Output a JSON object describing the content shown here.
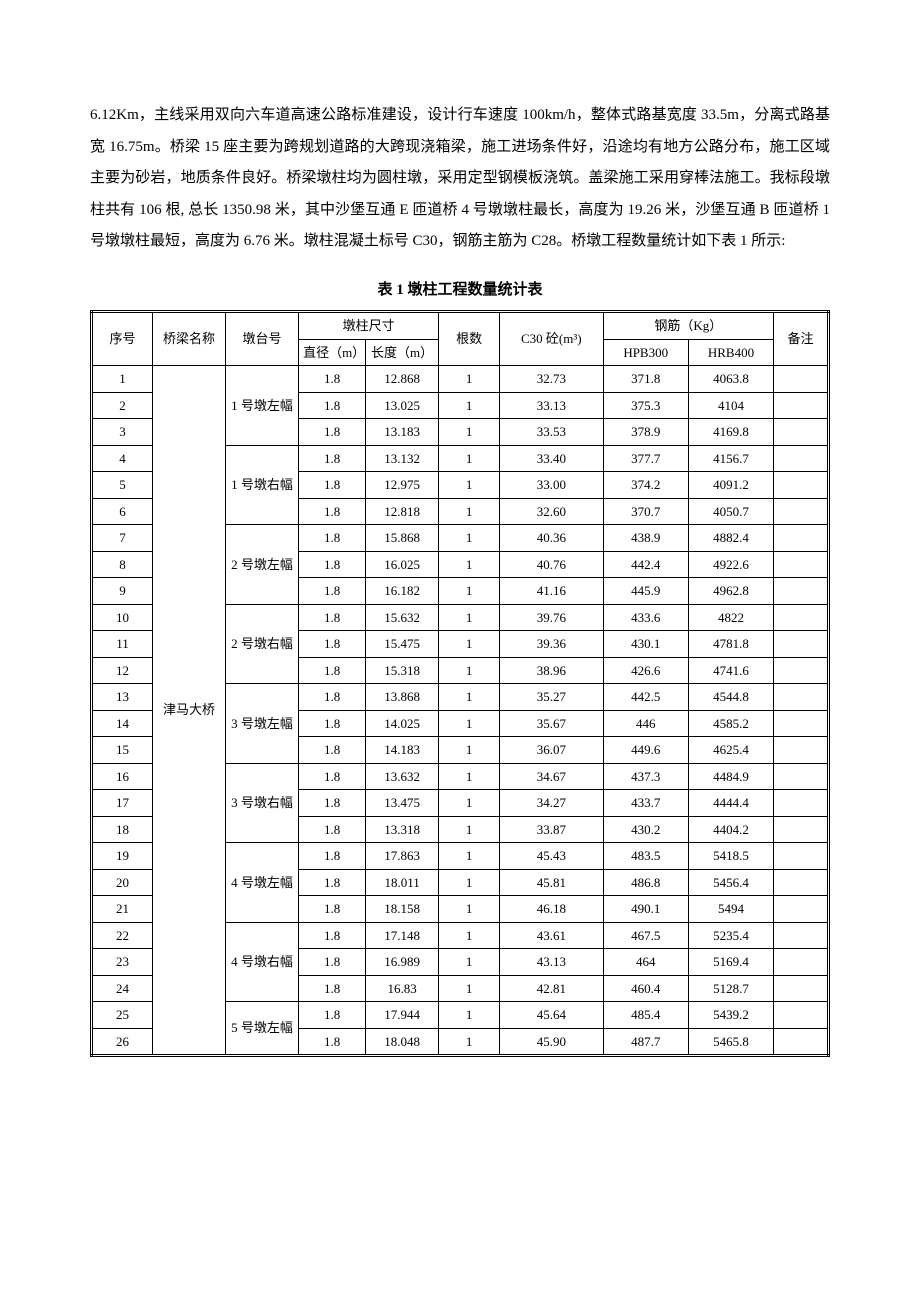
{
  "paragraph": "6.12Km，主线采用双向六车道高速公路标准建设，设计行车速度 100km/h，整体式路基宽度 33.5m，分离式路基宽 16.75m。桥梁 15 座主要为跨规划道路的大跨现浇箱梁，施工进场条件好，沿途均有地方公路分布，施工区域主要为砂岩，地质条件良好。桥梁墩柱均为圆柱墩，采用定型钢模板浇筑。盖梁施工采用穿棒法施工。我标段墩柱共有 106 根, 总长 1350.98 米，其中沙堡互通 E 匝道桥 4 号墩墩柱最长，高度为 19.26 米，沙堡互通 B 匝道桥 1 号墩墩柱最短，高度为 6.76 米。墩柱混凝土标号 C30，钢筋主筋为 C28。桥墩工程数量统计如下表 1 所示:",
  "tableTitle": "表 1  墩柱工程数量统计表",
  "headers": {
    "seq": "序号",
    "bridgeName": "桥梁名称",
    "pierNo": "墩台号",
    "pierSize": "墩柱尺寸",
    "diameter": "直径（m）",
    "length": "长度（m）",
    "count": "根数",
    "c30": "C30 砼(m³)",
    "rebar": "钢筋（Kg）",
    "hpb300": "HPB300",
    "hrb400": "HRB400",
    "note": "备注"
  },
  "bridgeName": "津马大桥",
  "pierGroups": [
    {
      "label": "1 号墩左幅",
      "span": 3
    },
    {
      "label": "1 号墩右幅",
      "span": 3
    },
    {
      "label": "2 号墩左幅",
      "span": 3
    },
    {
      "label": "2 号墩右幅",
      "span": 3
    },
    {
      "label": "3 号墩左幅",
      "span": 3
    },
    {
      "label": "3 号墩右幅",
      "span": 3
    },
    {
      "label": "4 号墩左幅",
      "span": 3
    },
    {
      "label": "4 号墩右幅",
      "span": 3
    },
    {
      "label": "5 号墩左幅",
      "span": 2
    }
  ],
  "rows": [
    {
      "seq": 1,
      "diam": "1.8",
      "len": "12.868",
      "count": "1",
      "c30": "32.73",
      "hpb": "371.8",
      "hrb": "4063.8",
      "note": ""
    },
    {
      "seq": 2,
      "diam": "1.8",
      "len": "13.025",
      "count": "1",
      "c30": "33.13",
      "hpb": "375.3",
      "hrb": "4104",
      "note": ""
    },
    {
      "seq": 3,
      "diam": "1.8",
      "len": "13.183",
      "count": "1",
      "c30": "33.53",
      "hpb": "378.9",
      "hrb": "4169.8",
      "note": ""
    },
    {
      "seq": 4,
      "diam": "1.8",
      "len": "13.132",
      "count": "1",
      "c30": "33.40",
      "hpb": "377.7",
      "hrb": "4156.7",
      "note": ""
    },
    {
      "seq": 5,
      "diam": "1.8",
      "len": "12.975",
      "count": "1",
      "c30": "33.00",
      "hpb": "374.2",
      "hrb": "4091.2",
      "note": ""
    },
    {
      "seq": 6,
      "diam": "1.8",
      "len": "12.818",
      "count": "1",
      "c30": "32.60",
      "hpb": "370.7",
      "hrb": "4050.7",
      "note": ""
    },
    {
      "seq": 7,
      "diam": "1.8",
      "len": "15.868",
      "count": "1",
      "c30": "40.36",
      "hpb": "438.9",
      "hrb": "4882.4",
      "note": ""
    },
    {
      "seq": 8,
      "diam": "1.8",
      "len": "16.025",
      "count": "1",
      "c30": "40.76",
      "hpb": "442.4",
      "hrb": "4922.6",
      "note": ""
    },
    {
      "seq": 9,
      "diam": "1.8",
      "len": "16.182",
      "count": "1",
      "c30": "41.16",
      "hpb": "445.9",
      "hrb": "4962.8",
      "note": ""
    },
    {
      "seq": 10,
      "diam": "1.8",
      "len": "15.632",
      "count": "1",
      "c30": "39.76",
      "hpb": "433.6",
      "hrb": "4822",
      "note": ""
    },
    {
      "seq": 11,
      "diam": "1.8",
      "len": "15.475",
      "count": "1",
      "c30": "39.36",
      "hpb": "430.1",
      "hrb": "4781.8",
      "note": ""
    },
    {
      "seq": 12,
      "diam": "1.8",
      "len": "15.318",
      "count": "1",
      "c30": "38.96",
      "hpb": "426.6",
      "hrb": "4741.6",
      "note": ""
    },
    {
      "seq": 13,
      "diam": "1.8",
      "len": "13.868",
      "count": "1",
      "c30": "35.27",
      "hpb": "442.5",
      "hrb": "4544.8",
      "note": ""
    },
    {
      "seq": 14,
      "diam": "1.8",
      "len": "14.025",
      "count": "1",
      "c30": "35.67",
      "hpb": "446",
      "hrb": "4585.2",
      "note": ""
    },
    {
      "seq": 15,
      "diam": "1.8",
      "len": "14.183",
      "count": "1",
      "c30": "36.07",
      "hpb": "449.6",
      "hrb": "4625.4",
      "note": ""
    },
    {
      "seq": 16,
      "diam": "1.8",
      "len": "13.632",
      "count": "1",
      "c30": "34.67",
      "hpb": "437.3",
      "hrb": "4484.9",
      "note": ""
    },
    {
      "seq": 17,
      "diam": "1.8",
      "len": "13.475",
      "count": "1",
      "c30": "34.27",
      "hpb": "433.7",
      "hrb": "4444.4",
      "note": ""
    },
    {
      "seq": 18,
      "diam": "1.8",
      "len": "13.318",
      "count": "1",
      "c30": "33.87",
      "hpb": "430.2",
      "hrb": "4404.2",
      "note": ""
    },
    {
      "seq": 19,
      "diam": "1.8",
      "len": "17.863",
      "count": "1",
      "c30": "45.43",
      "hpb": "483.5",
      "hrb": "5418.5",
      "note": ""
    },
    {
      "seq": 20,
      "diam": "1.8",
      "len": "18.011",
      "count": "1",
      "c30": "45.81",
      "hpb": "486.8",
      "hrb": "5456.4",
      "note": ""
    },
    {
      "seq": 21,
      "diam": "1.8",
      "len": "18.158",
      "count": "1",
      "c30": "46.18",
      "hpb": "490.1",
      "hrb": "5494",
      "note": ""
    },
    {
      "seq": 22,
      "diam": "1.8",
      "len": "17.148",
      "count": "1",
      "c30": "43.61",
      "hpb": "467.5",
      "hrb": "5235.4",
      "note": ""
    },
    {
      "seq": 23,
      "diam": "1.8",
      "len": "16.989",
      "count": "1",
      "c30": "43.13",
      "hpb": "464",
      "hrb": "5169.4",
      "note": ""
    },
    {
      "seq": 24,
      "diam": "1.8",
      "len": "16.83",
      "count": "1",
      "c30": "42.81",
      "hpb": "460.4",
      "hrb": "5128.7",
      "note": ""
    },
    {
      "seq": 25,
      "diam": "1.8",
      "len": "17.944",
      "count": "1",
      "c30": "45.64",
      "hpb": "485.4",
      "hrb": "5439.2",
      "note": ""
    },
    {
      "seq": 26,
      "diam": "1.8",
      "len": "18.048",
      "count": "1",
      "c30": "45.90",
      "hpb": "487.7",
      "hrb": "5465.8",
      "note": ""
    }
  ]
}
